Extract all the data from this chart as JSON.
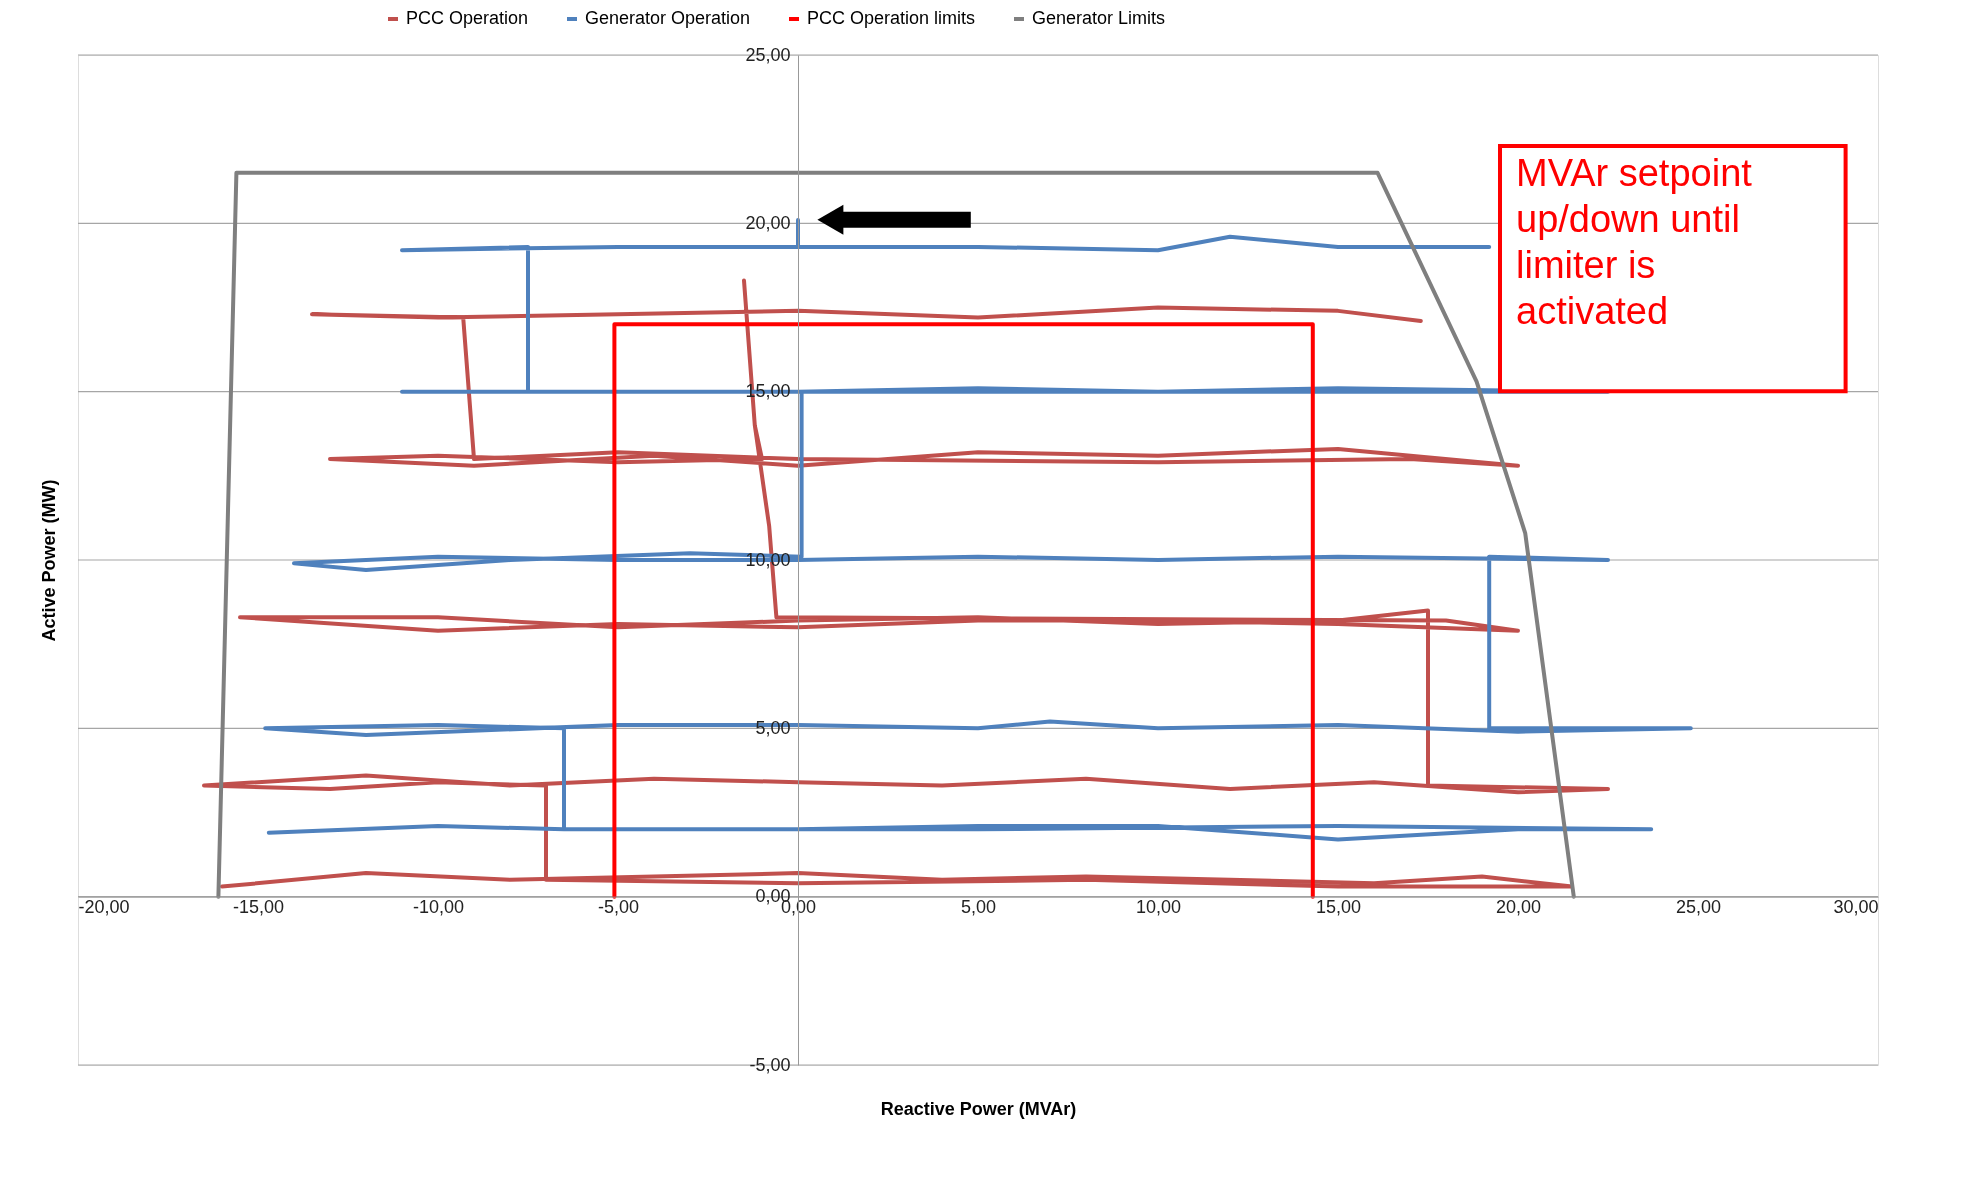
{
  "chart_data": {
    "type": "line",
    "xlabel": "Reactive Power (MVAr)",
    "ylabel": "Active Power (MW)",
    "xlim": [
      -20,
      30
    ],
    "ylim": [
      -5,
      25
    ],
    "xticks": [
      {
        "value": -20,
        "label": "-20,00"
      },
      {
        "value": -15,
        "label": "-15,00"
      },
      {
        "value": -10,
        "label": "-10,00"
      },
      {
        "value": -5,
        "label": "-5,00"
      },
      {
        "value": 0,
        "label": "0,00"
      },
      {
        "value": 5,
        "label": "5,00"
      },
      {
        "value": 10,
        "label": "10,00"
      },
      {
        "value": 15,
        "label": "15,00"
      },
      {
        "value": 20,
        "label": "20,00"
      },
      {
        "value": 25,
        "label": "25,00"
      },
      {
        "value": 30,
        "label": "30,00"
      }
    ],
    "yticks": [
      {
        "value": -5,
        "label": "-5,00"
      },
      {
        "value": 0,
        "label": "0,00"
      },
      {
        "value": 5,
        "label": "5,00"
      },
      {
        "value": 10,
        "label": "10,00"
      },
      {
        "value": 15,
        "label": "15,00"
      },
      {
        "value": 20,
        "label": "20,00"
      },
      {
        "value": 25,
        "label": "25,00"
      }
    ],
    "grid": "y",
    "legend": "top",
    "annotations": [
      "MVAr setpoint\nup/down until\nlimiter is\nactivated"
    ],
    "series": [
      {
        "name": "PCC Operation",
        "color": "#c0504d",
        "x": [
          -16,
          -12,
          -8,
          -4,
          0,
          4,
          8,
          12,
          16,
          19,
          21.5,
          15,
          8,
          0,
          -7,
          -7,
          -10,
          -13,
          -16.5,
          -12,
          -8,
          -4,
          0,
          4,
          8,
          12,
          16,
          20,
          22.5,
          17.5,
          17.5,
          15,
          10,
          5,
          0,
          -5,
          -10,
          -15.5,
          -10,
          -5,
          0,
          5,
          10,
          15,
          20,
          18,
          -0.6,
          -0.8,
          -1.2,
          -1.5,
          -1.2,
          -1,
          -5,
          -10,
          -13,
          -9,
          -4,
          0,
          5,
          10,
          15,
          20,
          17,
          10,
          0,
          -5,
          -9,
          -9.3,
          -13.5,
          -10,
          -5,
          0,
          5,
          10,
          15,
          17.3
        ],
        "values": [
          0.3,
          0.7,
          0.5,
          0.6,
          0.7,
          0.5,
          0.6,
          0.5,
          0.4,
          0.6,
          0.3,
          0.3,
          0.5,
          0.4,
          0.5,
          3.3,
          3.4,
          3.2,
          3.3,
          3.6,
          3.3,
          3.5,
          3.4,
          3.3,
          3.5,
          3.2,
          3.4,
          3.1,
          3.2,
          3.3,
          8.5,
          8.2,
          8.1,
          8.3,
          8.2,
          8.0,
          8.3,
          8.3,
          7.9,
          8.1,
          8.0,
          8.2,
          8.2,
          8.1,
          7.9,
          8.2,
          8.3,
          11,
          14,
          18.3,
          14,
          13,
          12.9,
          13.1,
          13,
          12.8,
          13.1,
          12.8,
          13.2,
          13.1,
          13.3,
          12.8,
          13,
          12.9,
          13,
          13.2,
          13,
          17.2,
          17.3,
          17.2,
          17.3,
          17.4,
          17.2,
          17.5,
          17.4,
          17.1
        ]
      },
      {
        "name": "Generator Operation",
        "color": "#4f81bd",
        "x": [
          -14.7,
          -10,
          -6.5,
          0,
          5,
          10,
          15,
          20,
          23.7,
          15,
          5,
          -6.5,
          -6.5,
          -10,
          -14.8,
          -12,
          -5,
          0,
          5,
          7,
          10,
          15,
          20,
          24.8,
          19.2,
          19.2,
          22.5,
          15,
          10,
          5,
          0,
          -5,
          -10,
          -14,
          -12,
          -8,
          -3,
          0.1,
          0.1,
          -11,
          -3,
          0,
          5,
          10,
          15,
          22.5,
          15,
          -7.5,
          -7.5,
          -11,
          -5,
          0,
          0,
          0,
          5,
          10,
          12,
          15,
          19.2
        ],
        "values": [
          1.9,
          2.1,
          2.0,
          2.0,
          2.1,
          2.1,
          1.7,
          2.0,
          2.0,
          2.1,
          2.0,
          2.0,
          5.0,
          5.1,
          5.0,
          4.8,
          5.1,
          5.1,
          5.0,
          5.2,
          5.0,
          5.1,
          4.9,
          5.0,
          5.0,
          10.1,
          10.0,
          10.1,
          10.0,
          10.1,
          10.0,
          10.0,
          10.1,
          9.9,
          9.7,
          10.0,
          10.2,
          10.1,
          15.0,
          15.0,
          15.0,
          15.0,
          15.1,
          15.0,
          15.1,
          15.0,
          15.0,
          15.0,
          19.3,
          19.2,
          19.3,
          19.3,
          20.1,
          19.3,
          19.3,
          19.2,
          19.6,
          19.3,
          19.3
        ]
      },
      {
        "name": "PCC Operation limits",
        "color": "#ff0000",
        "x": [
          -5.1,
          -5.1,
          14.3,
          14.3
        ],
        "values": [
          0,
          17,
          17,
          0
        ]
      },
      {
        "name": "Generator Limits",
        "color": "#7f7f7f",
        "x": [
          -16.1,
          -15.6,
          16.1,
          18.85,
          20.2,
          21.55
        ],
        "values": [
          0,
          21.5,
          21.5,
          15.3,
          10.8,
          0
        ]
      }
    ]
  }
}
